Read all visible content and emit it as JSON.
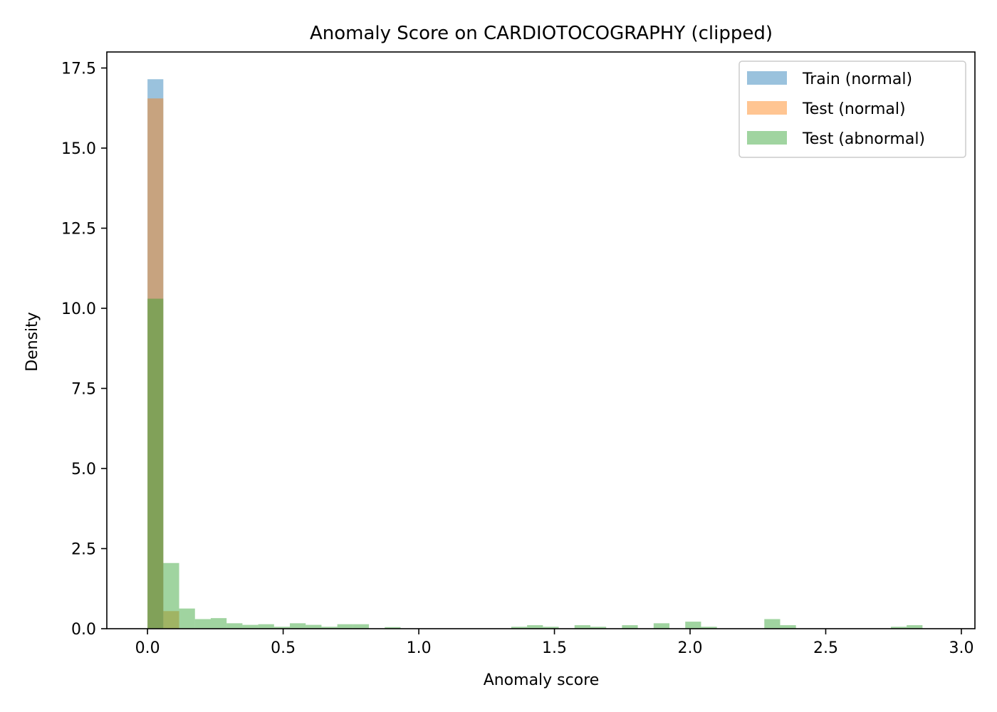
{
  "chart_data": {
    "type": "bar",
    "title": "Anomaly Score on CARDIOTOCOGRAPHY (clipped)",
    "xlabel": "Anomaly score",
    "ylabel": "Density",
    "xlim": [
      -0.15,
      3.05
    ],
    "ylim": [
      0,
      18.0
    ],
    "xticks": [
      "0.0",
      "0.5",
      "1.0",
      "1.5",
      "2.0",
      "2.5",
      "3.0"
    ],
    "xtick_values": [
      0,
      0.5,
      1.0,
      1.5,
      2.0,
      2.5,
      3.0
    ],
    "yticks": [
      "0.0",
      "2.5",
      "5.0",
      "7.5",
      "10.0",
      "12.5",
      "15.0",
      "17.5"
    ],
    "ytick_values": [
      0,
      2.5,
      5.0,
      7.5,
      10.0,
      12.5,
      15.0,
      17.5
    ],
    "bin_width": 0.0583,
    "legend_position": "top-right",
    "grid": false,
    "series": [
      {
        "name": "Train (normal)",
        "color": "#1f77b4",
        "bins": [
          [
            0.0,
            17.15
          ]
        ]
      },
      {
        "name": "Test (normal)",
        "color": "#ff7f0e",
        "bins": [
          [
            0.0,
            16.55
          ],
          [
            0.0583,
            0.55
          ]
        ]
      },
      {
        "name": "Test (abnormal)",
        "color": "#2ca02c",
        "bins": [
          [
            0.0,
            10.3
          ],
          [
            0.0583,
            2.05
          ],
          [
            0.1166,
            0.63
          ],
          [
            0.1749,
            0.3
          ],
          [
            0.2332,
            0.33
          ],
          [
            0.2915,
            0.17
          ],
          [
            0.3498,
            0.12
          ],
          [
            0.4081,
            0.14
          ],
          [
            0.4664,
            0.06
          ],
          [
            0.5247,
            0.17
          ],
          [
            0.583,
            0.12
          ],
          [
            0.6413,
            0.06
          ],
          [
            0.6996,
            0.14
          ],
          [
            0.7579,
            0.14
          ],
          [
            0.8745,
            0.05
          ],
          [
            1.3409,
            0.06
          ],
          [
            1.3992,
            0.11
          ],
          [
            1.4575,
            0.06
          ],
          [
            1.5741,
            0.11
          ],
          [
            1.6324,
            0.06
          ],
          [
            1.749,
            0.11
          ],
          [
            1.8656,
            0.17
          ],
          [
            1.9822,
            0.22
          ],
          [
            2.0405,
            0.06
          ],
          [
            2.2737,
            0.3
          ],
          [
            2.332,
            0.11
          ],
          [
            2.7401,
            0.06
          ],
          [
            2.7984,
            0.11
          ]
        ]
      }
    ]
  }
}
